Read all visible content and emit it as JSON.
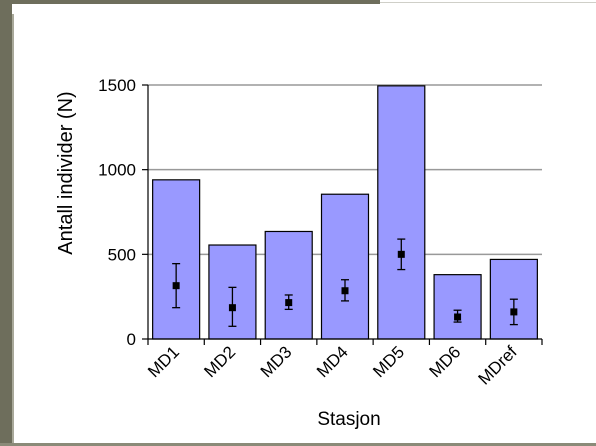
{
  "chart_data": {
    "type": "bar",
    "categories": [
      "MD1",
      "MD2",
      "MD3",
      "MD4",
      "MD5",
      "MD6",
      "MDref"
    ],
    "series": [
      {
        "values": [
          940,
          555,
          635,
          855,
          1495,
          380,
          470
        ]
      },
      {
        "values": [
          315,
          185,
          215,
          285,
          500,
          130,
          160
        ],
        "error_low": [
          185,
          75,
          175,
          225,
          410,
          100,
          85
        ],
        "error_high": [
          445,
          305,
          260,
          350,
          590,
          170,
          235
        ]
      }
    ],
    "xlabel": "Stasjon",
    "ylabel": "Antall individer (N)",
    "ylim": [
      0,
      1500
    ],
    "yticks": [
      0,
      500,
      1000,
      1500
    ],
    "grid": true,
    "colors": {
      "bar": "#9999ff",
      "bar_edge": "#000000",
      "grid": "#999999",
      "marker": "#000000"
    }
  }
}
